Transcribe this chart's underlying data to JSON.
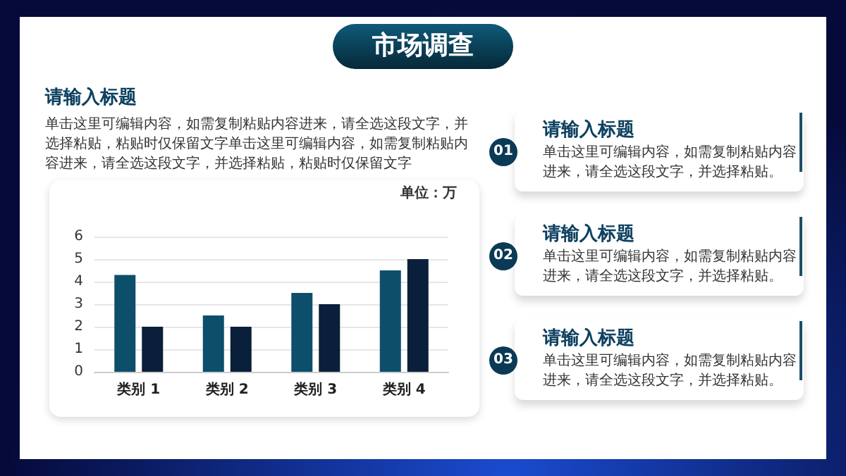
{
  "chart_data": [
    {
      "type": "bar",
      "title": "市场调查",
      "subtitle": "请输入标题",
      "annotations": [
        "单击这里可编辑内容，如需复制粘贴内容进来，请全选这段文字，并选择粘贴，粘贴时仅保留文字单击这里可编辑内容，如需复制粘贴内容进来，请全选这段文字，并选择粘贴，粘贴时仅保留文字"
      ],
      "ylabel": "单位：万",
      "categories": [
        "类别 1",
        "类别 2",
        "类别 3",
        "类别 4"
      ],
      "series": [
        {
          "color": "#0d4f6b",
          "values": [
            4.3,
            2.5,
            3.5,
            4.5
          ]
        },
        {
          "color": "#0a1f3a",
          "values": [
            2,
            2,
            3,
            5
          ]
        }
      ],
      "ylim": [
        0,
        6
      ],
      "yticks": [
        0,
        1,
        2,
        3,
        4,
        5,
        6
      ],
      "grid": "y"
    },
    {
      "type": "other",
      "annotations": [
        "01",
        "请输入标题",
        "单击这里可编辑内容，如需复制粘贴内容进来，请全选这段文字，并选择粘贴。",
        "02",
        "请输入标题",
        "单击这里可编辑内容，如需复制粘贴内容进来，请全选这段文字，并选择粘贴。",
        "03",
        "请输入标题",
        "单击这里可编辑内容，如需复制粘贴内容进来，请全选这段文字，并选择粘贴。"
      ]
    }
  ]
}
